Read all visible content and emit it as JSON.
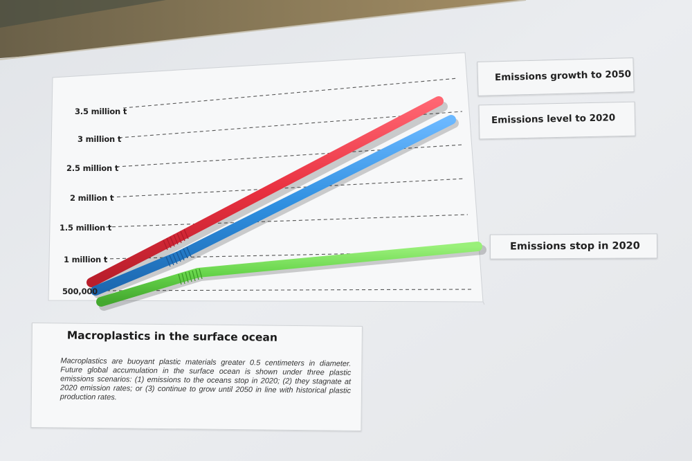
{
  "chart": {
    "tick_labels": [
      "3.5 million t",
      "3 million t",
      "2.5 million t",
      "2 million t",
      "1.5 million t",
      "1 million t",
      "500,000"
    ]
  },
  "legend": {
    "growth": "Emissions growth to 2050",
    "level": "Emissions level to 2020",
    "stop": "Emissions stop in 2020"
  },
  "info": {
    "title": "Macroplastics in the surface ocean",
    "body": "Macroplastics are buoyant plastic materials greater 0.5 centimeters in diameter. Future global accumulation in the surface ocean is shown under three plastic emissions scenarios: (1) emissions to the oceans stop in 2020; (2) they stagnate at 2020 emission rates; or (3) continue to grow until 2050 in line with historical plastic production rates."
  },
  "colors": {
    "growth_straw": "#e8303f",
    "level_straw": "#2f8fe0",
    "stop_straw": "#66d44a",
    "board": "#e9ebee",
    "background": "#dcdfe3"
  }
}
